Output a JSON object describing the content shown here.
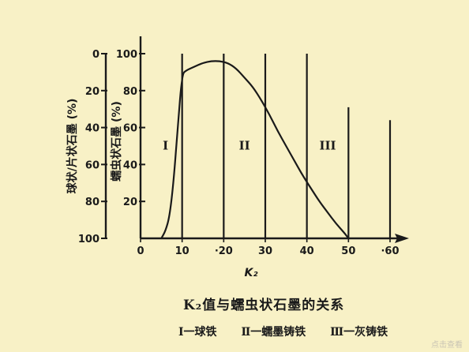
{
  "chart_data": {
    "type": "line",
    "title": "K₂值与蠕虫状石墨的关系",
    "xlabel": "K₂",
    "x_ticks": [
      "0",
      "10",
      "·20",
      "30",
      "40",
      "50",
      "·60"
    ],
    "x_tick_values": [
      0,
      10,
      20,
      30,
      40,
      50,
      60
    ],
    "xlim": [
      0,
      66
    ],
    "ylabel_left": "球状/片状石墨 (%)",
    "ylabel_right": "蠕虫状石墨 (%)",
    "y_left_ticks": [
      "0",
      "20",
      "40",
      "60",
      "80",
      "100"
    ],
    "y_left_values": [
      0,
      20,
      40,
      60,
      80,
      100
    ],
    "y_right_ticks": [
      "100",
      "80",
      "60",
      "40",
      "20"
    ],
    "y_right_values": [
      100,
      80,
      60,
      40,
      20
    ],
    "ylim": [
      0,
      100
    ],
    "series": [
      {
        "x": [
          5,
          6,
          7,
          8,
          9,
          10,
          11,
          13,
          15,
          17,
          19,
          21,
          23,
          25,
          27,
          29,
          31,
          33,
          35,
          37,
          39,
          41,
          43,
          45,
          47,
          49,
          50
        ],
        "y": [
          0,
          4,
          12,
          32,
          62,
          89,
          91,
          93,
          95,
          96,
          96,
          95,
          92,
          87,
          82,
          75,
          67,
          58,
          50,
          42,
          34,
          27,
          20,
          14,
          8,
          3,
          0
        ]
      }
    ],
    "vertical_lines": [
      {
        "x": 10,
        "top": 100
      },
      {
        "x": 20,
        "top": 100
      },
      {
        "x": 30,
        "top": 100
      },
      {
        "x": 40,
        "top": 100
      },
      {
        "x": 50,
        "top": 71
      },
      {
        "x": 60,
        "top": 64
      }
    ],
    "regions": [
      {
        "label": "I",
        "x": 6,
        "y": 48
      },
      {
        "label": "II",
        "x": 25,
        "y": 48
      },
      {
        "label": "III",
        "x": 45,
        "y": 48
      }
    ],
    "grid": false,
    "legend": "bottom"
  },
  "caption": {
    "title": "K₂值与蠕虫状石墨的关系"
  },
  "legend": {
    "item1": "Ⅰ一球铁",
    "item2": "Ⅱ一蠕墨铸铁",
    "item3": "Ⅲ一灰铸铁"
  },
  "watermark": "点击查看"
}
